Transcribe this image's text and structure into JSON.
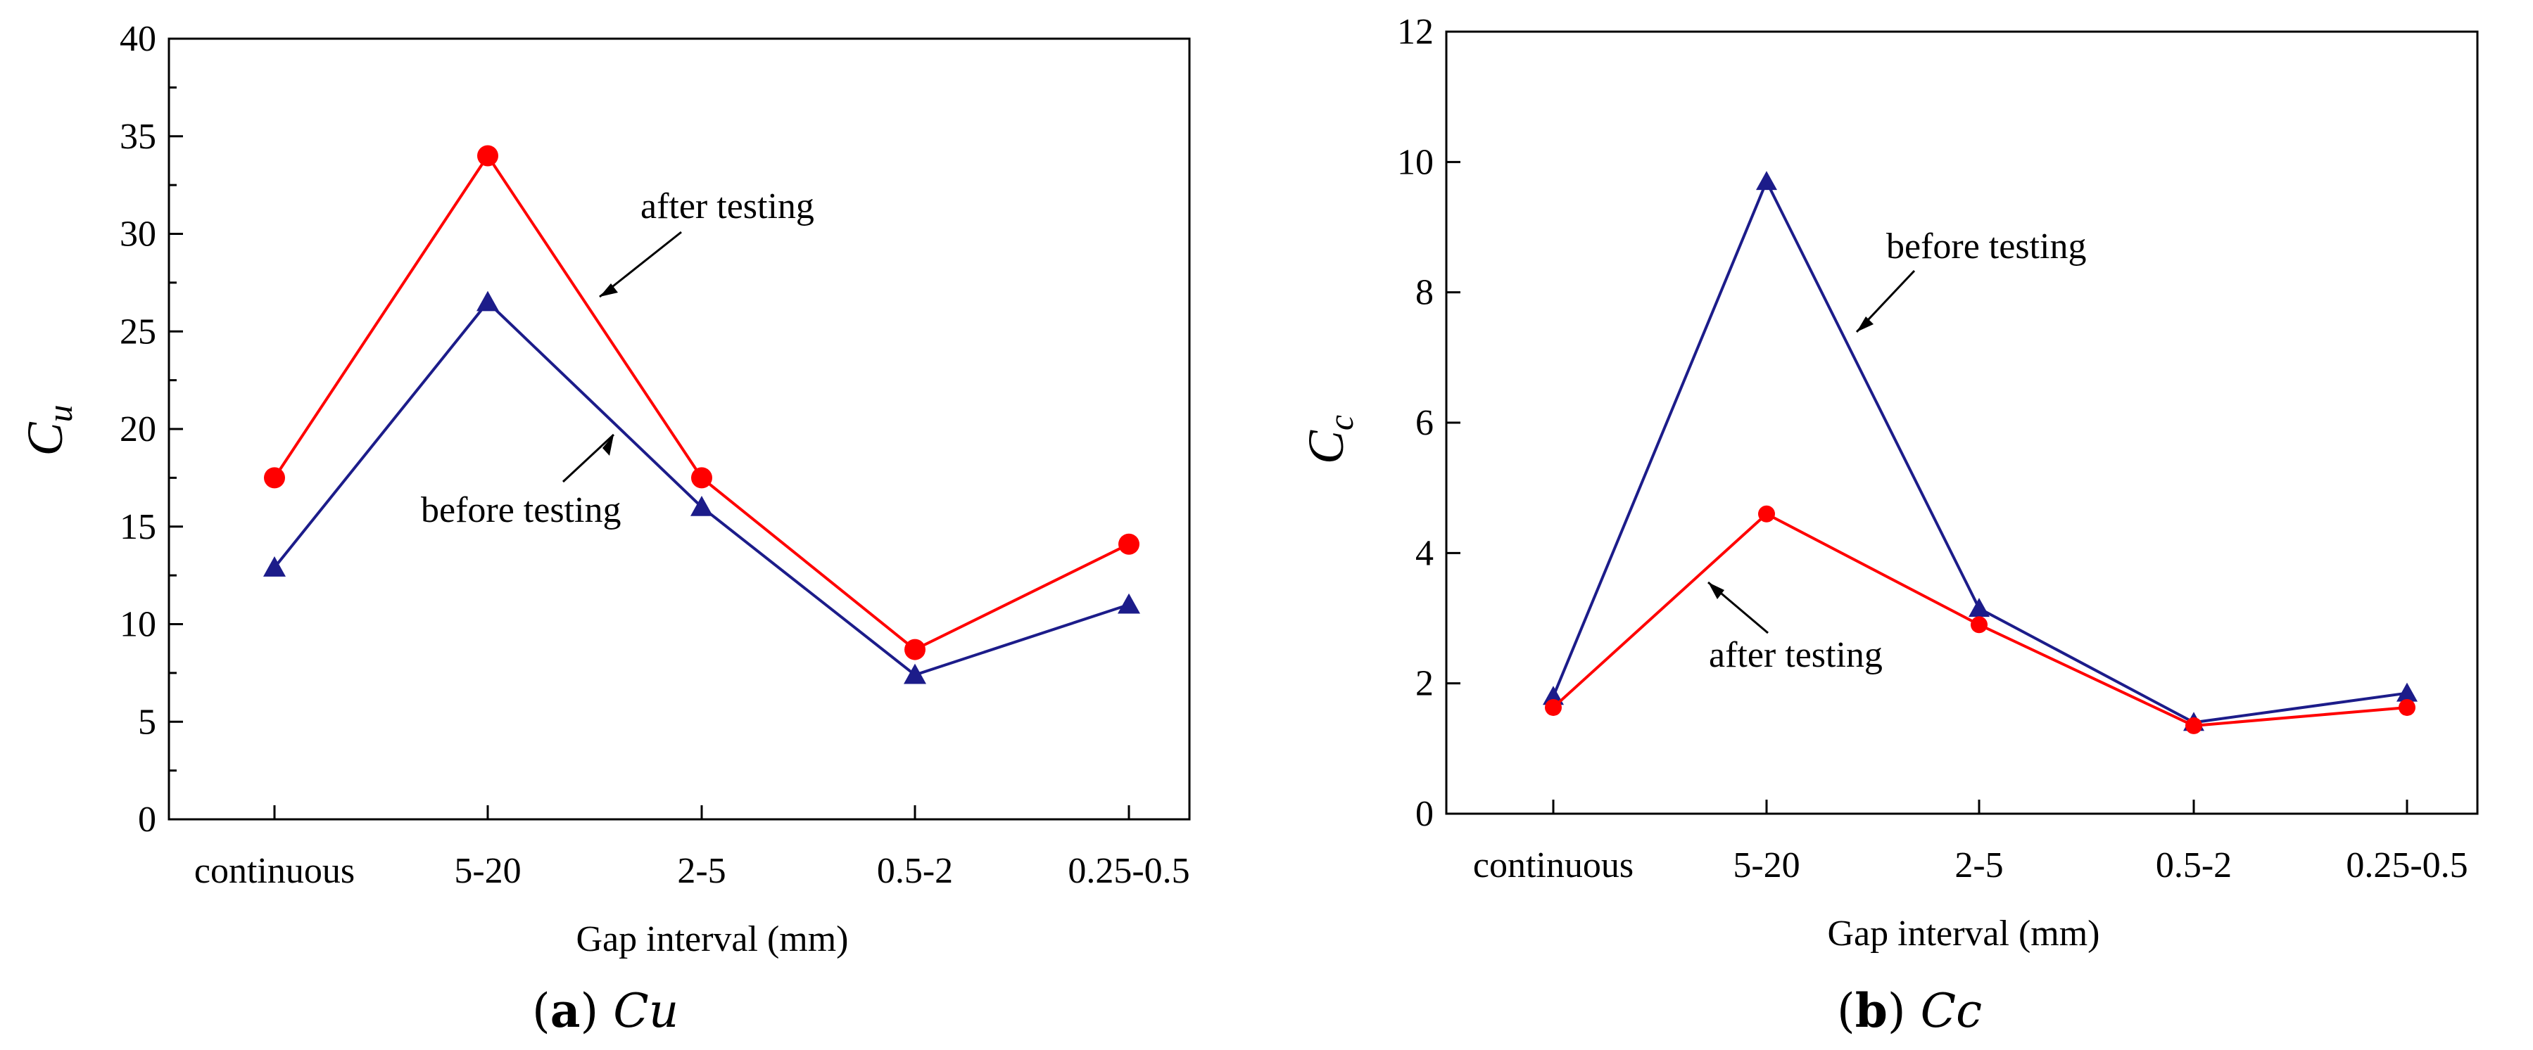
{
  "colors": {
    "after": "#ff0000",
    "before": "#1c1c8a"
  },
  "chart_data": [
    {
      "type": "line",
      "panel": "a",
      "caption": {
        "letter": "a",
        "symbol": "C",
        "subscript": "u"
      },
      "ylabel": {
        "symbol": "C",
        "subscript": "u"
      },
      "xlabel": "Gap interval (mm)",
      "categories": [
        "continuous",
        "5-20",
        "2-5",
        "0.5-2",
        "0.25-0.5"
      ],
      "ylim": [
        0,
        40
      ],
      "yticks": [
        0,
        5,
        10,
        15,
        20,
        25,
        30,
        35,
        40
      ],
      "yticklabels": [
        "0",
        "5",
        "10",
        "15",
        "20",
        "25",
        "30",
        "35",
        "40"
      ],
      "series": [
        {
          "name": "after testing",
          "marker": "circle",
          "color": "#ff0000",
          "values": [
            17.5,
            34.0,
            17.5,
            8.7,
            14.1
          ]
        },
        {
          "name": "before testing",
          "marker": "triangle",
          "color": "#1c1c8a",
          "values": [
            12.9,
            26.5,
            16.0,
            7.4,
            11.0
          ]
        }
      ],
      "annotations": [
        {
          "text": "after testing",
          "series": "after testing"
        },
        {
          "text": "before testing",
          "series": "before testing"
        }
      ]
    },
    {
      "type": "line",
      "panel": "b",
      "caption": {
        "letter": "b",
        "symbol": "C",
        "subscript": "c"
      },
      "ylabel": {
        "symbol": "C",
        "subscript": "c"
      },
      "xlabel": "Gap interval (mm)",
      "categories": [
        "continuous",
        "5-20",
        "2-5",
        "0.5-2",
        "0.25-0.5"
      ],
      "ylim": [
        0,
        12
      ],
      "yticks": [
        0,
        2,
        4,
        6,
        8,
        10,
        12
      ],
      "yticklabels": [
        "0",
        "2",
        "4",
        "6",
        "8",
        "10",
        "12"
      ],
      "series": [
        {
          "name": "before testing",
          "marker": "triangle",
          "color": "#1c1c8a",
          "values": [
            1.8,
            9.7,
            3.15,
            1.4,
            1.85
          ]
        },
        {
          "name": "after testing",
          "marker": "circle",
          "color": "#ff0000",
          "values": [
            1.63,
            4.6,
            2.9,
            1.35,
            1.63
          ]
        }
      ],
      "annotations": [
        {
          "text": "before testing",
          "series": "before testing"
        },
        {
          "text": "after testing",
          "series": "after testing"
        }
      ]
    }
  ]
}
